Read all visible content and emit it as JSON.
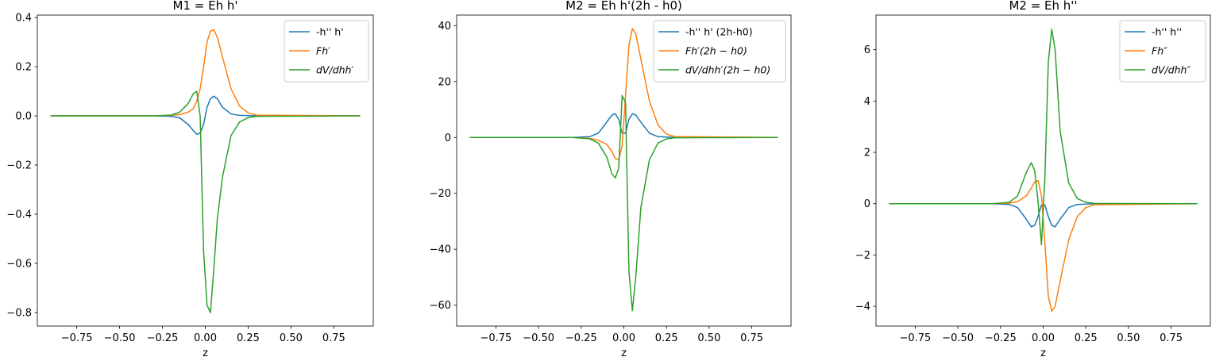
{
  "chart_data": [
    {
      "type": "line",
      "title": "M1 = Eh h'",
      "xlabel": "z",
      "ylabel": "",
      "xlim": [
        -0.98,
        0.98
      ],
      "ylim": [
        -0.855,
        0.41
      ],
      "xticks": [
        -0.75,
        -0.5,
        -0.25,
        0.0,
        0.25,
        0.5,
        0.75
      ],
      "xtick_labels": [
        "−0.75",
        "−0.50",
        "−0.25",
        "0.00",
        "0.25",
        "0.50",
        "0.75"
      ],
      "yticks": [
        -0.8,
        -0.6,
        -0.4,
        -0.2,
        0.0,
        0.2,
        0.4
      ],
      "ytick_labels": [
        "−0.8",
        "−0.6",
        "−0.4",
        "−0.2",
        "0.0",
        "0.2",
        "0.4"
      ],
      "legend_position": "top-right",
      "series": [
        {
          "name": "-h'' h'",
          "color": "#1f77b4",
          "italic": false,
          "x": [
            -0.9,
            -0.3,
            -0.2,
            -0.15,
            -0.1,
            -0.07,
            -0.05,
            -0.03,
            -0.01,
            0.01,
            0.03,
            0.05,
            0.07,
            0.1,
            0.15,
            0.2,
            0.3,
            0.9
          ],
          "y": [
            0,
            0,
            -0.002,
            -0.008,
            -0.035,
            -0.06,
            -0.075,
            -0.07,
            -0.035,
            0.035,
            0.07,
            0.08,
            0.07,
            0.035,
            0.008,
            0.002,
            0,
            0
          ]
        },
        {
          "name": "Fh′",
          "color": "#ff7f0e",
          "italic": true,
          "x": [
            -0.9,
            -0.3,
            -0.2,
            -0.15,
            -0.1,
            -0.07,
            -0.05,
            -0.03,
            -0.01,
            0.01,
            0.03,
            0.05,
            0.07,
            0.1,
            0.15,
            0.2,
            0.25,
            0.3,
            0.9
          ],
          "y": [
            0,
            0,
            0.002,
            0.005,
            0.015,
            0.03,
            0.06,
            0.11,
            0.2,
            0.3,
            0.345,
            0.35,
            0.32,
            0.24,
            0.11,
            0.04,
            0.012,
            0.003,
            0
          ]
        },
        {
          "name": "dV/dhh′",
          "color": "#2ca02c",
          "italic": true,
          "x": [
            -0.9,
            -0.3,
            -0.2,
            -0.15,
            -0.1,
            -0.07,
            -0.05,
            -0.03,
            -0.01,
            0.01,
            0.03,
            0.05,
            0.07,
            0.1,
            0.15,
            0.2,
            0.25,
            0.3,
            0.9
          ],
          "y": [
            0,
            0,
            0.003,
            0.015,
            0.05,
            0.09,
            0.1,
            0.0,
            -0.55,
            -0.77,
            -0.8,
            -0.62,
            -0.42,
            -0.25,
            -0.08,
            -0.025,
            -0.007,
            -0.002,
            0
          ]
        }
      ]
    },
    {
      "type": "line",
      "title": "M2 = Eh h'(2h - h0)",
      "xlabel": "z",
      "ylabel": "",
      "xlim": [
        -0.98,
        0.98
      ],
      "ylim": [
        -67.5,
        43.8
      ],
      "xticks": [
        -0.75,
        -0.5,
        -0.25,
        0.0,
        0.25,
        0.5,
        0.75
      ],
      "xtick_labels": [
        "−0.75",
        "−0.50",
        "−0.25",
        "0.00",
        "0.25",
        "0.50",
        "0.75"
      ],
      "yticks": [
        -60,
        -40,
        -20,
        0,
        20,
        40
      ],
      "ytick_labels": [
        "−60",
        "−40",
        "−20",
        "0",
        "20",
        "40"
      ],
      "legend_position": "top-right",
      "series": [
        {
          "name": "-h'' h' (2h-h0)",
          "color": "#1f77b4",
          "italic": false,
          "x": [
            -0.9,
            -0.3,
            -0.2,
            -0.15,
            -0.1,
            -0.07,
            -0.05,
            -0.03,
            -0.01,
            0.01,
            0.03,
            0.05,
            0.07,
            0.1,
            0.15,
            0.2,
            0.3,
            0.9
          ],
          "y": [
            0,
            0,
            0.3,
            1.5,
            5.5,
            8.0,
            8.5,
            6.5,
            1.5,
            1.5,
            6.5,
            8.5,
            8.0,
            5.5,
            1.5,
            0.3,
            0,
            0
          ]
        },
        {
          "name": "Fh′(2h − h0)",
          "color": "#ff7f0e",
          "italic": true,
          "x": [
            -0.9,
            -0.3,
            -0.2,
            -0.15,
            -0.1,
            -0.07,
            -0.05,
            -0.03,
            -0.01,
            0.01,
            0.03,
            0.05,
            0.07,
            0.1,
            0.15,
            0.2,
            0.25,
            0.3,
            0.9
          ],
          "y": [
            0,
            0,
            -0.3,
            -1.0,
            -2.5,
            -5.0,
            -7.5,
            -8.0,
            -3.0,
            15.0,
            33.0,
            39.0,
            37.0,
            28.0,
            13.0,
            4.5,
            1.2,
            0.3,
            0
          ]
        },
        {
          "name": "dV/dhh′(2h − h0)",
          "color": "#2ca02c",
          "italic": true,
          "x": [
            -0.9,
            -0.3,
            -0.2,
            -0.15,
            -0.1,
            -0.07,
            -0.05,
            -0.03,
            -0.01,
            0.01,
            0.03,
            0.05,
            0.07,
            0.1,
            0.15,
            0.2,
            0.25,
            0.3,
            0.9
          ],
          "y": [
            0,
            0,
            -0.5,
            -2.0,
            -7.0,
            -13.0,
            -14.5,
            -11.0,
            15.0,
            12.5,
            -48.0,
            -62.0,
            -50.0,
            -25.0,
            -8.0,
            -2.0,
            -0.5,
            -0.1,
            0
          ]
        }
      ]
    },
    {
      "type": "line",
      "title": "M2 = Eh h''",
      "xlabel": "z",
      "ylabel": "",
      "xlim": [
        -0.98,
        0.98
      ],
      "ylim": [
        -4.77,
        7.35
      ],
      "xticks": [
        -0.75,
        -0.5,
        -0.25,
        0.0,
        0.25,
        0.5,
        0.75
      ],
      "xtick_labels": [
        "−0.75",
        "−0.50",
        "−0.25",
        "0.00",
        "0.25",
        "0.50",
        "0.75"
      ],
      "yticks": [
        -4,
        -2,
        0,
        2,
        4,
        6
      ],
      "ytick_labels": [
        "−4",
        "−2",
        "0",
        "2",
        "4",
        "6"
      ],
      "legend_position": "top-right",
      "series": [
        {
          "name": "-h'' h''",
          "color": "#1f77b4",
          "italic": false,
          "x": [
            -0.9,
            -0.3,
            -0.2,
            -0.15,
            -0.1,
            -0.07,
            -0.05,
            -0.03,
            -0.01,
            0.01,
            0.03,
            0.05,
            0.07,
            0.1,
            0.15,
            0.2,
            0.3,
            0.9
          ],
          "y": [
            0,
            0,
            -0.03,
            -0.15,
            -0.6,
            -0.9,
            -0.85,
            -0.5,
            -0.05,
            -0.05,
            -0.5,
            -0.85,
            -0.9,
            -0.6,
            -0.15,
            -0.03,
            0,
            0
          ]
        },
        {
          "name": "Fh″",
          "color": "#ff7f0e",
          "italic": true,
          "x": [
            -0.9,
            -0.3,
            -0.2,
            -0.15,
            -0.1,
            -0.07,
            -0.05,
            -0.03,
            -0.01,
            0.01,
            0.03,
            0.05,
            0.07,
            0.1,
            0.15,
            0.2,
            0.25,
            0.3,
            0.9
          ],
          "y": [
            0,
            0,
            0.02,
            0.08,
            0.3,
            0.6,
            0.85,
            0.9,
            0.3,
            -1.5,
            -3.6,
            -4.2,
            -4.0,
            -3.0,
            -1.4,
            -0.5,
            -0.15,
            -0.04,
            0
          ]
        },
        {
          "name": "dV/dhh″",
          "color": "#2ca02c",
          "italic": true,
          "x": [
            -0.9,
            -0.3,
            -0.2,
            -0.15,
            -0.1,
            -0.07,
            -0.05,
            -0.03,
            -0.01,
            0.01,
            0.03,
            0.05,
            0.07,
            0.1,
            0.15,
            0.2,
            0.25,
            0.3,
            0.9
          ],
          "y": [
            0,
            0,
            0.05,
            0.3,
            1.2,
            1.6,
            1.3,
            0.1,
            -1.6,
            1.0,
            5.5,
            6.8,
            6.0,
            2.8,
            0.8,
            0.2,
            0.05,
            0.01,
            0
          ]
        }
      ]
    }
  ]
}
